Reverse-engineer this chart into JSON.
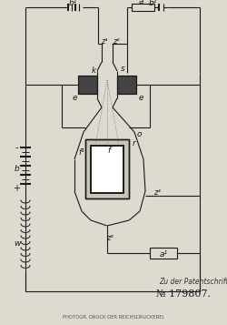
{
  "bg_color": "#dedad0",
  "line_color": "#1a1a1a",
  "title_patent": "№ 179807.",
  "subtitle": "Zu der Patentschrift",
  "footer": "PHOTOGR. DRUCK DER REICHSDRUCKEREI.",
  "labels": {
    "b1": "b¹",
    "b2": "b²",
    "a": "a",
    "z1": "z¹",
    "z2": "z²",
    "z3": "z³",
    "z4": "z⁴",
    "k": "k",
    "s": "s",
    "e1": "e",
    "e2": "e",
    "o": "o",
    "r": "r",
    "f1": "f¹",
    "f2": "f",
    "b_bat": "b",
    "w": "w",
    "a1": "a¹"
  }
}
